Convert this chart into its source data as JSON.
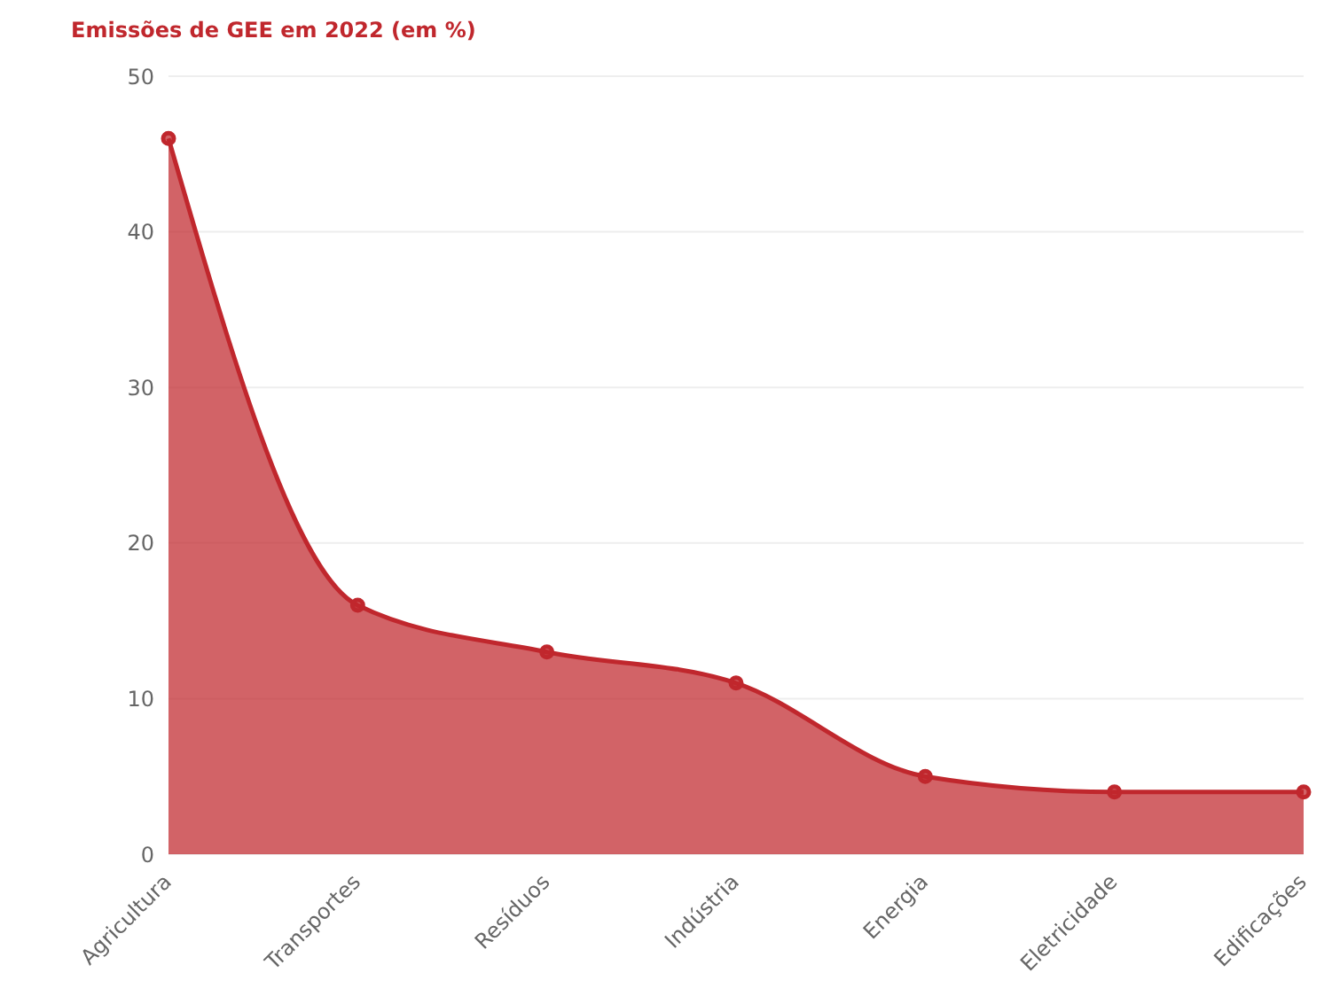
{
  "chart_data": {
    "type": "area",
    "title": "Emissões de GEE em 2022 (em %)",
    "categories": [
      "Agricultura",
      "Transportes",
      "Resíduos",
      "Indústria",
      "Energia",
      "Eletricidade",
      "Edificações"
    ],
    "series": [
      {
        "color": "#c0272d",
        "values": [
          46,
          16,
          13,
          11,
          5,
          4,
          4
        ]
      }
    ],
    "ylim": [
      0,
      50
    ],
    "yticks": [
      0,
      10,
      20,
      30,
      40,
      50
    ],
    "grid": "y",
    "marker": "circle"
  }
}
